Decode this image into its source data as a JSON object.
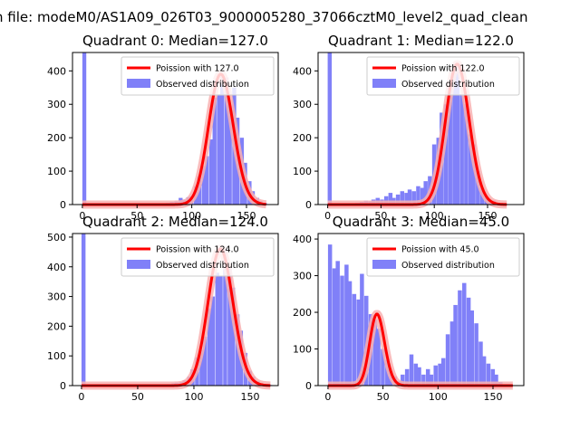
{
  "figure": {
    "suptitle": "n file: modeM0/AS1A09_026T03_9000005280_37066cztM0_level2_quad_clean"
  },
  "chart_data": [
    {
      "type": "histogram",
      "title": "Quadrant 0: Median=127.0",
      "xlabel": "",
      "ylabel": "",
      "xlim": [
        -9,
        179
      ],
      "ylim": [
        0,
        455
      ],
      "xticks": [
        0,
        50,
        100,
        150
      ],
      "yticks": [
        0,
        100,
        200,
        300,
        400
      ],
      "bin_width": 3.6,
      "bins": [
        [
          0,
          455
        ],
        [
          73,
          3
        ],
        [
          76,
          5
        ],
        [
          80,
          8
        ],
        [
          84,
          10
        ],
        [
          88,
          20
        ],
        [
          91,
          15
        ],
        [
          95,
          22
        ],
        [
          98,
          25
        ],
        [
          102,
          55
        ],
        [
          105,
          85
        ],
        [
          109,
          115
        ],
        [
          112,
          145
        ],
        [
          116,
          195
        ],
        [
          119,
          320
        ],
        [
          123,
          330
        ],
        [
          126,
          390
        ],
        [
          130,
          380
        ],
        [
          133,
          295
        ],
        [
          137,
          350
        ],
        [
          140,
          260
        ],
        [
          144,
          200
        ],
        [
          147,
          125
        ],
        [
          151,
          70
        ],
        [
          154,
          40
        ],
        [
          158,
          20
        ],
        [
          161,
          10
        ],
        [
          165,
          5
        ]
      ],
      "poisson_mean": 127.0,
      "legend": [
        "Poission with 127.0",
        "Observed distribution"
      ],
      "legend_loc": "upper right"
    },
    {
      "type": "histogram",
      "title": "Quadrant 1: Median=122.0",
      "xlabel": "",
      "ylabel": "",
      "xlim": [
        -9,
        184
      ],
      "ylim": [
        0,
        455
      ],
      "xticks": [
        0,
        50,
        100,
        150
      ],
      "yticks": [
        0,
        100,
        200,
        300,
        400
      ],
      "bin_width": 3.8,
      "bins": [
        [
          0,
          455
        ],
        [
          26,
          5
        ],
        [
          30,
          8
        ],
        [
          34,
          12
        ],
        [
          38,
          10
        ],
        [
          41,
          15
        ],
        [
          45,
          20
        ],
        [
          49,
          15
        ],
        [
          53,
          25
        ],
        [
          57,
          35
        ],
        [
          60,
          20
        ],
        [
          64,
          30
        ],
        [
          68,
          40
        ],
        [
          72,
          35
        ],
        [
          75,
          45
        ],
        [
          79,
          40
        ],
        [
          83,
          55
        ],
        [
          87,
          50
        ],
        [
          90,
          70
        ],
        [
          94,
          85
        ],
        [
          98,
          180
        ],
        [
          102,
          200
        ],
        [
          105,
          275
        ],
        [
          109,
          300
        ],
        [
          113,
          350
        ],
        [
          117,
          410
        ],
        [
          120,
          420
        ],
        [
          124,
          330
        ],
        [
          128,
          300
        ],
        [
          132,
          210
        ],
        [
          135,
          180
        ],
        [
          139,
          100
        ],
        [
          143,
          50
        ],
        [
          147,
          25
        ],
        [
          150,
          15
        ],
        [
          154,
          12
        ],
        [
          158,
          5
        ],
        [
          162,
          3
        ]
      ],
      "poisson_mean": 122.0,
      "legend": [
        "Poission with 122.0",
        "Observed distribution"
      ],
      "legend_loc": "upper right"
    },
    {
      "type": "histogram",
      "title": "Quadrant 2: Median=124.0",
      "xlabel": "",
      "ylabel": "",
      "xlim": [
        -8,
        175
      ],
      "ylim": [
        0,
        512
      ],
      "xticks": [
        0,
        50,
        100,
        150
      ],
      "yticks": [
        0,
        100,
        200,
        300,
        400,
        500
      ],
      "bin_width": 3.6,
      "bins": [
        [
          0,
          512
        ],
        [
          69,
          3
        ],
        [
          72,
          4
        ],
        [
          76,
          5
        ],
        [
          80,
          8
        ],
        [
          83,
          10
        ],
        [
          87,
          12
        ],
        [
          90,
          18
        ],
        [
          94,
          30
        ],
        [
          97,
          55
        ],
        [
          101,
          95
        ],
        [
          105,
          120
        ],
        [
          108,
          165
        ],
        [
          112,
          260
        ],
        [
          115,
          300
        ],
        [
          119,
          380
        ],
        [
          122,
          370
        ],
        [
          126,
          460
        ],
        [
          130,
          400
        ],
        [
          133,
          330
        ],
        [
          137,
          240
        ],
        [
          140,
          185
        ],
        [
          144,
          110
        ],
        [
          148,
          50
        ],
        [
          151,
          30
        ],
        [
          155,
          15
        ],
        [
          158,
          8
        ],
        [
          162,
          4
        ],
        [
          166,
          2
        ]
      ],
      "poisson_mean": 124.0,
      "legend": [
        "Poission with 124.0",
        "Observed distribution"
      ],
      "legend_loc": "upper right"
    },
    {
      "type": "histogram",
      "title": "Quadrant 3: Median=45.0",
      "xlabel": "",
      "ylabel": "",
      "xlim": [
        -9,
        178
      ],
      "ylim": [
        0,
        415
      ],
      "xticks": [
        0,
        50,
        100,
        150
      ],
      "yticks": [
        0,
        100,
        200,
        300,
        400
      ],
      "bin_width": 3.7,
      "bins": [
        [
          0,
          385
        ],
        [
          4,
          320
        ],
        [
          7,
          340
        ],
        [
          11,
          300
        ],
        [
          15,
          330
        ],
        [
          18,
          285
        ],
        [
          22,
          250
        ],
        [
          26,
          235
        ],
        [
          29,
          305
        ],
        [
          33,
          245
        ],
        [
          37,
          195
        ],
        [
          41,
          180
        ],
        [
          44,
          155
        ],
        [
          48,
          100
        ],
        [
          52,
          70
        ],
        [
          55,
          40
        ],
        [
          59,
          25
        ],
        [
          63,
          12
        ],
        [
          66,
          30
        ],
        [
          70,
          45
        ],
        [
          74,
          85
        ],
        [
          78,
          60
        ],
        [
          81,
          50
        ],
        [
          85,
          30
        ],
        [
          89,
          45
        ],
        [
          92,
          30
        ],
        [
          96,
          55
        ],
        [
          100,
          60
        ],
        [
          103,
          75
        ],
        [
          107,
          140
        ],
        [
          111,
          175
        ],
        [
          114,
          220
        ],
        [
          118,
          260
        ],
        [
          122,
          280
        ],
        [
          126,
          240
        ],
        [
          129,
          205
        ],
        [
          133,
          170
        ],
        [
          137,
          120
        ],
        [
          140,
          80
        ],
        [
          144,
          60
        ],
        [
          148,
          45
        ],
        [
          151,
          30
        ],
        [
          155,
          10
        ]
      ],
      "poisson_mean": 45.0,
      "legend": [
        "Poission with 45.0",
        "Observed distribution"
      ],
      "legend_loc": "upper right"
    }
  ],
  "style": {
    "bar_color": "#8080f8",
    "poisson_color": "#ff0000",
    "poisson_halo_color": "#f8b0b0",
    "axis_color": "#000000"
  }
}
